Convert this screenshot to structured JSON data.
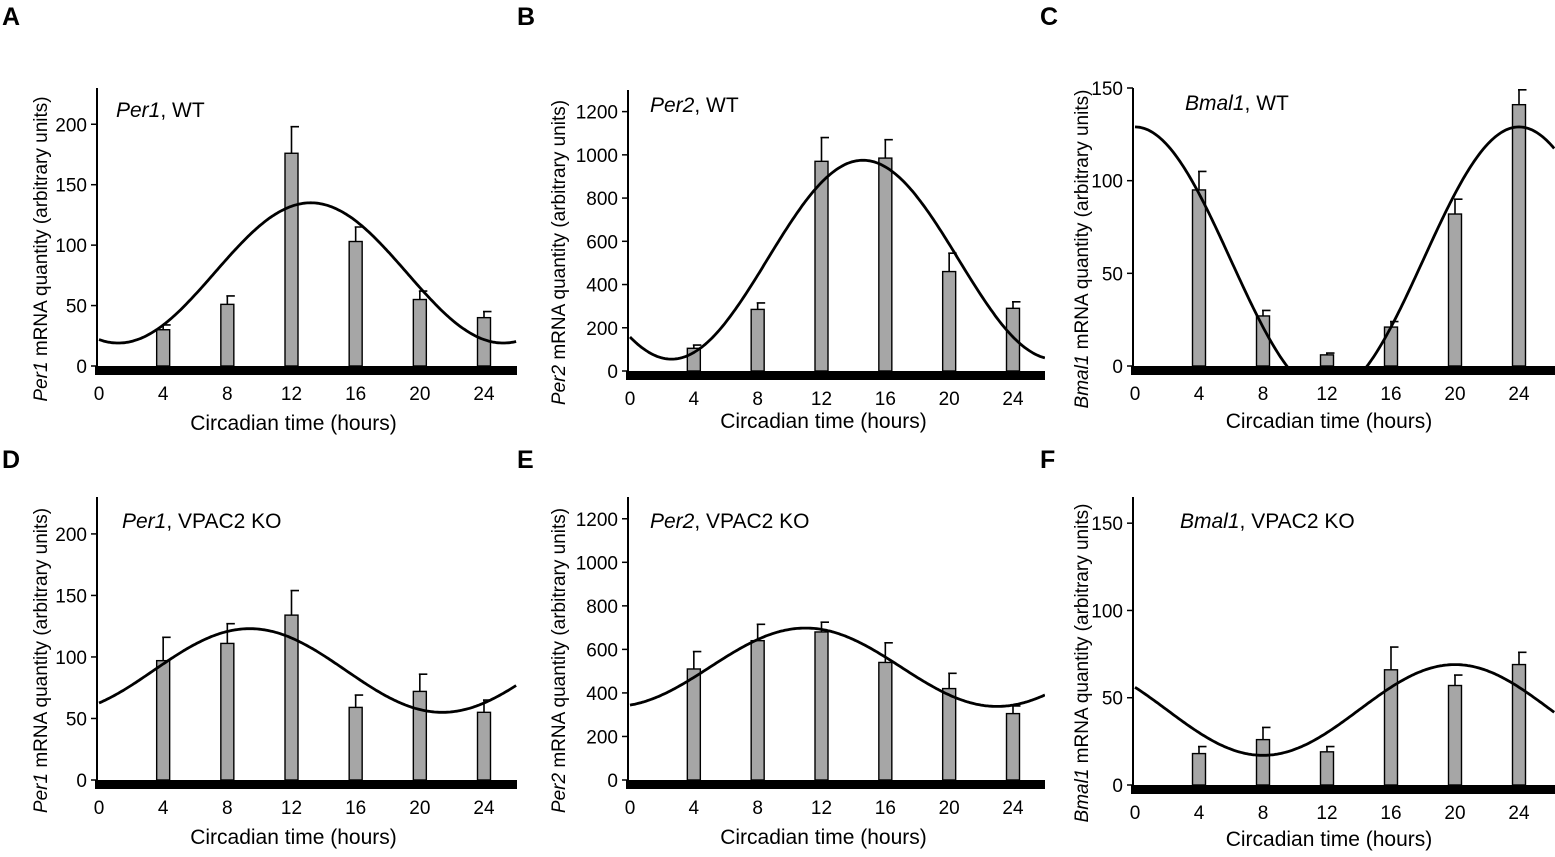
{
  "figure": {
    "x_axis_label": "Circadian time (hours)",
    "x_ticks": [
      0,
      4,
      8,
      12,
      16,
      20,
      24
    ]
  },
  "chart_data": [
    {
      "panel": "A",
      "type": "bar",
      "title_gene": "Per1",
      "title_rest": ", WT",
      "ylabel_gene": "Per1",
      "ylabel_rest": " mRNA quantity (arbitrary units)",
      "xlabel": "Circadian time (hours)",
      "x": [
        4,
        8,
        12,
        16,
        20,
        24
      ],
      "values": [
        30,
        51,
        176,
        103,
        55,
        40
      ],
      "errors": [
        4,
        7,
        22,
        12,
        7,
        5
      ],
      "ylim": [
        0,
        230
      ],
      "yticks": [
        0,
        50,
        100,
        150,
        200
      ],
      "fit": {
        "mesor": 77,
        "amplitude": 58,
        "peak": 13.2
      }
    },
    {
      "panel": "B",
      "type": "bar",
      "title_gene": "Per2",
      "title_rest": ", WT",
      "ylabel_gene": "Per2",
      "ylabel_rest": " mRNA quantity (arbitrary units)",
      "xlabel": "Circadian time (hours)",
      "x": [
        4,
        8,
        12,
        16,
        20,
        24
      ],
      "values": [
        105,
        285,
        970,
        985,
        460,
        290
      ],
      "errors": [
        15,
        30,
        110,
        85,
        85,
        30
      ],
      "ylim": [
        0,
        1300
      ],
      "yticks": [
        0,
        200,
        400,
        600,
        800,
        1000,
        1200
      ],
      "fit": {
        "mesor": 515,
        "amplitude": 460,
        "peak": 14.6
      }
    },
    {
      "panel": "C",
      "type": "bar",
      "title_gene": "Bmal1",
      "title_rest": ", WT",
      "ylabel_gene": "Bmal1",
      "ylabel_rest": " mRNA quantity (arbitrary units)",
      "xlabel": "Circadian time (hours)",
      "x": [
        4,
        8,
        12,
        16,
        20,
        24
      ],
      "values": [
        95,
        27,
        6,
        21,
        82,
        141
      ],
      "errors": [
        10,
        3,
        1,
        3,
        8,
        8
      ],
      "ylim": [
        0,
        150
      ],
      "yticks": [
        0,
        50,
        100,
        150
      ],
      "fit": {
        "mesor": 57,
        "amplitude": 72,
        "peak": 0
      }
    },
    {
      "panel": "D",
      "type": "bar",
      "title_gene": "Per1",
      "title_rest": ", VPAC2 KO",
      "ylabel_gene": "Per1",
      "ylabel_rest": " mRNA quantity (arbitrary units)",
      "xlabel": "Circadian time (hours)",
      "x": [
        4,
        8,
        12,
        16,
        20,
        24
      ],
      "values": [
        97,
        111,
        134,
        59,
        72,
        55
      ],
      "errors": [
        19,
        16,
        20,
        10,
        14,
        10
      ],
      "ylim": [
        0,
        230
      ],
      "yticks": [
        0,
        50,
        100,
        150,
        200
      ],
      "fit": {
        "mesor": 89,
        "amplitude": 34,
        "peak": 9.4
      }
    },
    {
      "panel": "E",
      "type": "bar",
      "title_gene": "Per2",
      "title_rest": ", VPAC2 KO",
      "ylabel_gene": "Per2",
      "ylabel_rest": " mRNA quantity (arbitrary units)",
      "xlabel": "Circadian time (hours)",
      "x": [
        4,
        8,
        12,
        16,
        20,
        24
      ],
      "values": [
        510,
        640,
        680,
        540,
        420,
        305
      ],
      "errors": [
        80,
        75,
        45,
        90,
        70,
        35
      ],
      "ylim": [
        0,
        1300
      ],
      "yticks": [
        0,
        200,
        400,
        600,
        800,
        1000,
        1200
      ],
      "fit": {
        "mesor": 518,
        "amplitude": 180,
        "peak": 11
      }
    },
    {
      "panel": "F",
      "type": "bar",
      "title_gene": "Bmal1",
      "title_rest": ", VPAC2 KO",
      "ylabel_gene": "Bmal1",
      "ylabel_rest": " mRNA quantity (arbitrary units)",
      "xlabel": "Circadian time (hours)",
      "x": [
        4,
        8,
        12,
        16,
        20,
        24
      ],
      "values": [
        18,
        26,
        19,
        66,
        57,
        69
      ],
      "errors": [
        4,
        7,
        3,
        13,
        6,
        7
      ],
      "ylim": [
        0,
        165
      ],
      "yticks": [
        0,
        50,
        100,
        150
      ],
      "fit": {
        "mesor": 43,
        "amplitude": 26,
        "peak": 20
      }
    }
  ]
}
